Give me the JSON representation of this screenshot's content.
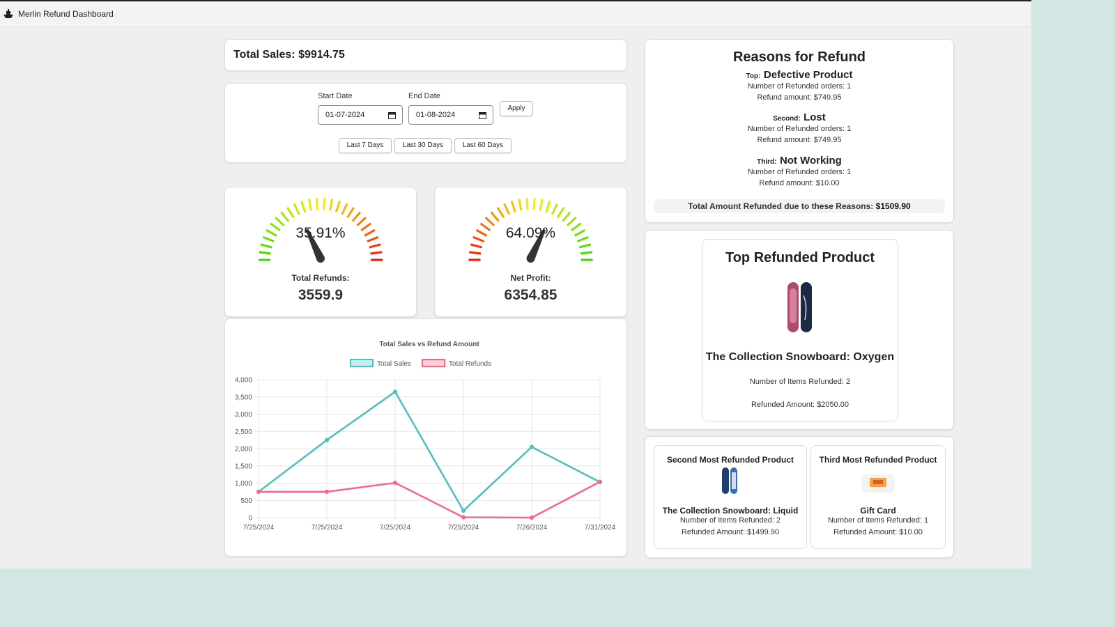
{
  "header": {
    "title": "Merlin Refund Dashboard"
  },
  "total_sales": "Total Sales: $9914.75",
  "date_filter": {
    "start_label": "Start Date",
    "start_value": "01-07-2024",
    "end_label": "End Date",
    "end_value": "01-08-2024",
    "apply": "Apply",
    "presets": [
      "Last 7 Days",
      "Last 30 Days",
      "Last 60 Days"
    ]
  },
  "gauges": [
    {
      "value": 35.91,
      "value_label": "35.91%",
      "label": "Total Refunds:",
      "amount": "3559.9",
      "colors": [
        "#33dd00",
        "#ffee00",
        "#ff1100"
      ]
    },
    {
      "value": 64.09,
      "value_label": "64.09%",
      "label": "Net Profit:",
      "amount": "6354.85",
      "colors": [
        "#ff1100",
        "#ffee00",
        "#33dd00"
      ]
    }
  ],
  "reasons": {
    "title": "Reasons for Refund",
    "items": [
      {
        "rank": "Top:",
        "reason": "Defective Product",
        "orders": "Number of Refunded orders: 1",
        "amount": "Refund amount: $749.95"
      },
      {
        "rank": "Second:",
        "reason": "Lost",
        "orders": "Number of Refunded orders: 1",
        "amount": "Refund amount: $749.95"
      },
      {
        "rank": "Third:",
        "reason": "Not Working",
        "orders": "Number of Refunded orders: 1",
        "amount": "Refund amount: $10.00"
      }
    ],
    "total_label": "Total Amount Refunded due to these Reasons:",
    "total_value": "$1509.90"
  },
  "top_product": {
    "title": "Top Refunded Product",
    "name": "The Collection Snowboard: Oxygen",
    "items": "Number of Items Refunded: 2",
    "amount": "Refunded Amount: $2050.00"
  },
  "other_products": [
    {
      "title": "Second Most Refunded Product",
      "name": "The Collection Snowboard: Liquid",
      "items": "Number of Items Refunded: 2",
      "amount": "Refunded Amount: $1499.90"
    },
    {
      "title": "Third Most Refunded Product",
      "name": "Gift Card",
      "items": "Number of Items Refunded: 1",
      "amount": "Refunded Amount: $10.00"
    }
  ],
  "chart_data": {
    "type": "line",
    "title": "Total Sales vs Refund Amount",
    "categories": [
      "7/25/2024",
      "7/25/2024",
      "7/25/2024",
      "7/25/2024",
      "7/26/2024",
      "7/31/2024"
    ],
    "series": [
      {
        "name": "Total Sales",
        "color": "#4bc0c0",
        "values": [
          750,
          2250,
          3650,
          200,
          2050,
          1030
        ]
      },
      {
        "name": "Total Refunds",
        "color": "#ff6384",
        "values": [
          750,
          750,
          1010,
          10,
          0,
          1040
        ]
      }
    ],
    "ylim": [
      0,
      4000
    ],
    "yticks": [
      0,
      500,
      {
        "value": 1000,
        "label": "1,000"
      },
      {
        "value": 1500,
        "label": "1,500"
      },
      {
        "value": 2000,
        "label": "2,000"
      },
      {
        "value": 2500,
        "label": "2,500"
      },
      {
        "value": 3000,
        "label": "3,000"
      },
      {
        "value": 3500,
        "label": "3,500"
      },
      {
        "value": 4000,
        "label": "4,000"
      }
    ],
    "grid": true,
    "legend": "top"
  }
}
